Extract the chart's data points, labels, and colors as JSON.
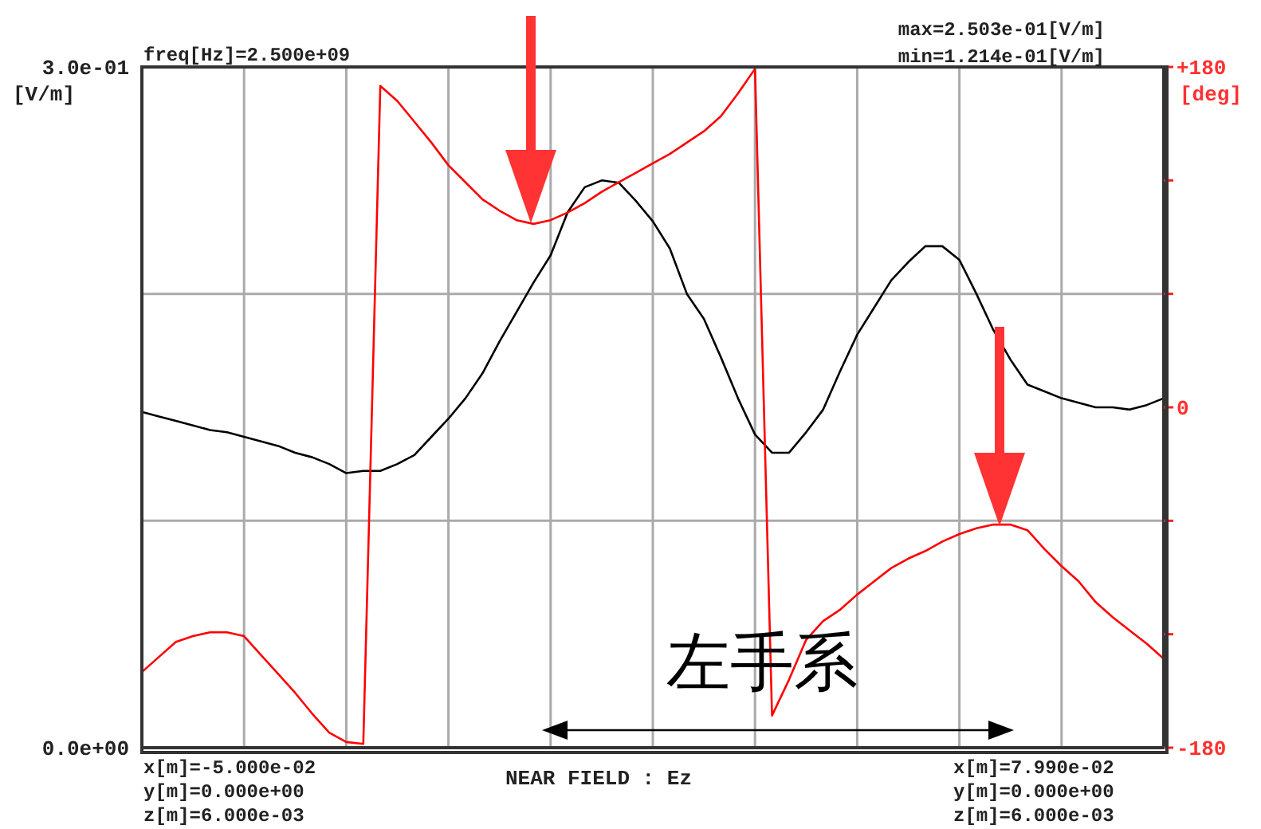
{
  "chart_data": {
    "type": "line",
    "xlabel": "NEAR FIELD : Ez",
    "ylabel": "[V/m]",
    "y2label": "[deg]",
    "categories": [
      null,
      null,
      null,
      null,
      null,
      null,
      null,
      null,
      null,
      null,
      null,
      null,
      null,
      null,
      null,
      null,
      null,
      null,
      null,
      null,
      null,
      null,
      null,
      null,
      null,
      null,
      null,
      null,
      null,
      null,
      null,
      null,
      null,
      null,
      null,
      null,
      null,
      null,
      null,
      null,
      null,
      null,
      null,
      null,
      null,
      null,
      null,
      null,
      null,
      null,
      null,
      null,
      null,
      null,
      null,
      null,
      null,
      null,
      null,
      null,
      null
    ],
    "ylim": [
      0,
      0.3
    ],
    "yticks": [
      {
        "value": 0,
        "label": "0.0e+00"
      },
      {
        "value": 0.1,
        "label": null
      },
      {
        "value": 0.2,
        "label": null
      },
      {
        "value": 0.3,
        "label": "3.0e-01"
      }
    ],
    "y2lim": [
      -180,
      180
    ],
    "y2ticks": [
      {
        "value": -180,
        "label": "-180"
      },
      {
        "value": -120,
        "label": null
      },
      {
        "value": -60,
        "label": null
      },
      {
        "value": 0,
        "label": "0"
      },
      {
        "value": 60,
        "label": null
      },
      {
        "value": 120,
        "label": null
      },
      {
        "value": 180,
        "label": "+180"
      }
    ],
    "grid": true,
    "marker": "none",
    "line_style": "solid",
    "series": [
      {
        "color": "#000000",
        "values": [
          0.148,
          0.146,
          0.144,
          0.142,
          0.14,
          0.139,
          0.137,
          0.135,
          0.133,
          0.13,
          0.128,
          0.125,
          0.121,
          0.122,
          0.122,
          0.125,
          0.129,
          0.137,
          0.145,
          0.154,
          0.165,
          0.179,
          0.192,
          0.205,
          0.217,
          0.236,
          0.247,
          0.25,
          0.249,
          0.241,
          0.232,
          0.22,
          0.2,
          0.189,
          0.172,
          0.154,
          0.138,
          0.13,
          0.13,
          0.139,
          0.149,
          0.166,
          0.182,
          0.194,
          0.206,
          0.214,
          0.221,
          0.221,
          0.215,
          0.2,
          0.184,
          0.171,
          0.16,
          0.157,
          0.154,
          0.152,
          0.15,
          0.15,
          0.149,
          0.151,
          0.154
        ]
      },
      {
        "color": "#ff0000",
        "axis": "y2",
        "values": [
          -140,
          -132,
          -124,
          -121,
          -119,
          -119,
          -121,
          -131,
          -141,
          -151,
          -162,
          -172,
          -177,
          -178,
          170,
          162,
          151,
          140,
          128,
          119,
          110,
          104,
          99,
          97,
          99,
          103,
          108,
          114,
          119,
          124,
          129,
          134,
          140,
          146,
          154,
          166,
          179,
          -163,
          -144,
          -123,
          -113,
          -107,
          -99,
          -92,
          -85,
          -80,
          -76,
          -71,
          -67,
          -64,
          -62,
          -62,
          -65,
          -75,
          -84,
          -92,
          -103,
          -111,
          -118,
          -125,
          -133
        ]
      }
    ],
    "annotations": [
      "freq[Hz]=2.500e+09",
      "max=2.503e-01[V/m]",
      "min=1.214e-01[V/m]",
      "x[m]=-5.000e-02",
      "y[m]=0.000e+00",
      "z[m]=6.000e-03",
      "x[m]=7.990e-02",
      "y[m]=0.000e+00",
      "z[m]=6.000e-03",
      "左手系"
    ]
  }
}
